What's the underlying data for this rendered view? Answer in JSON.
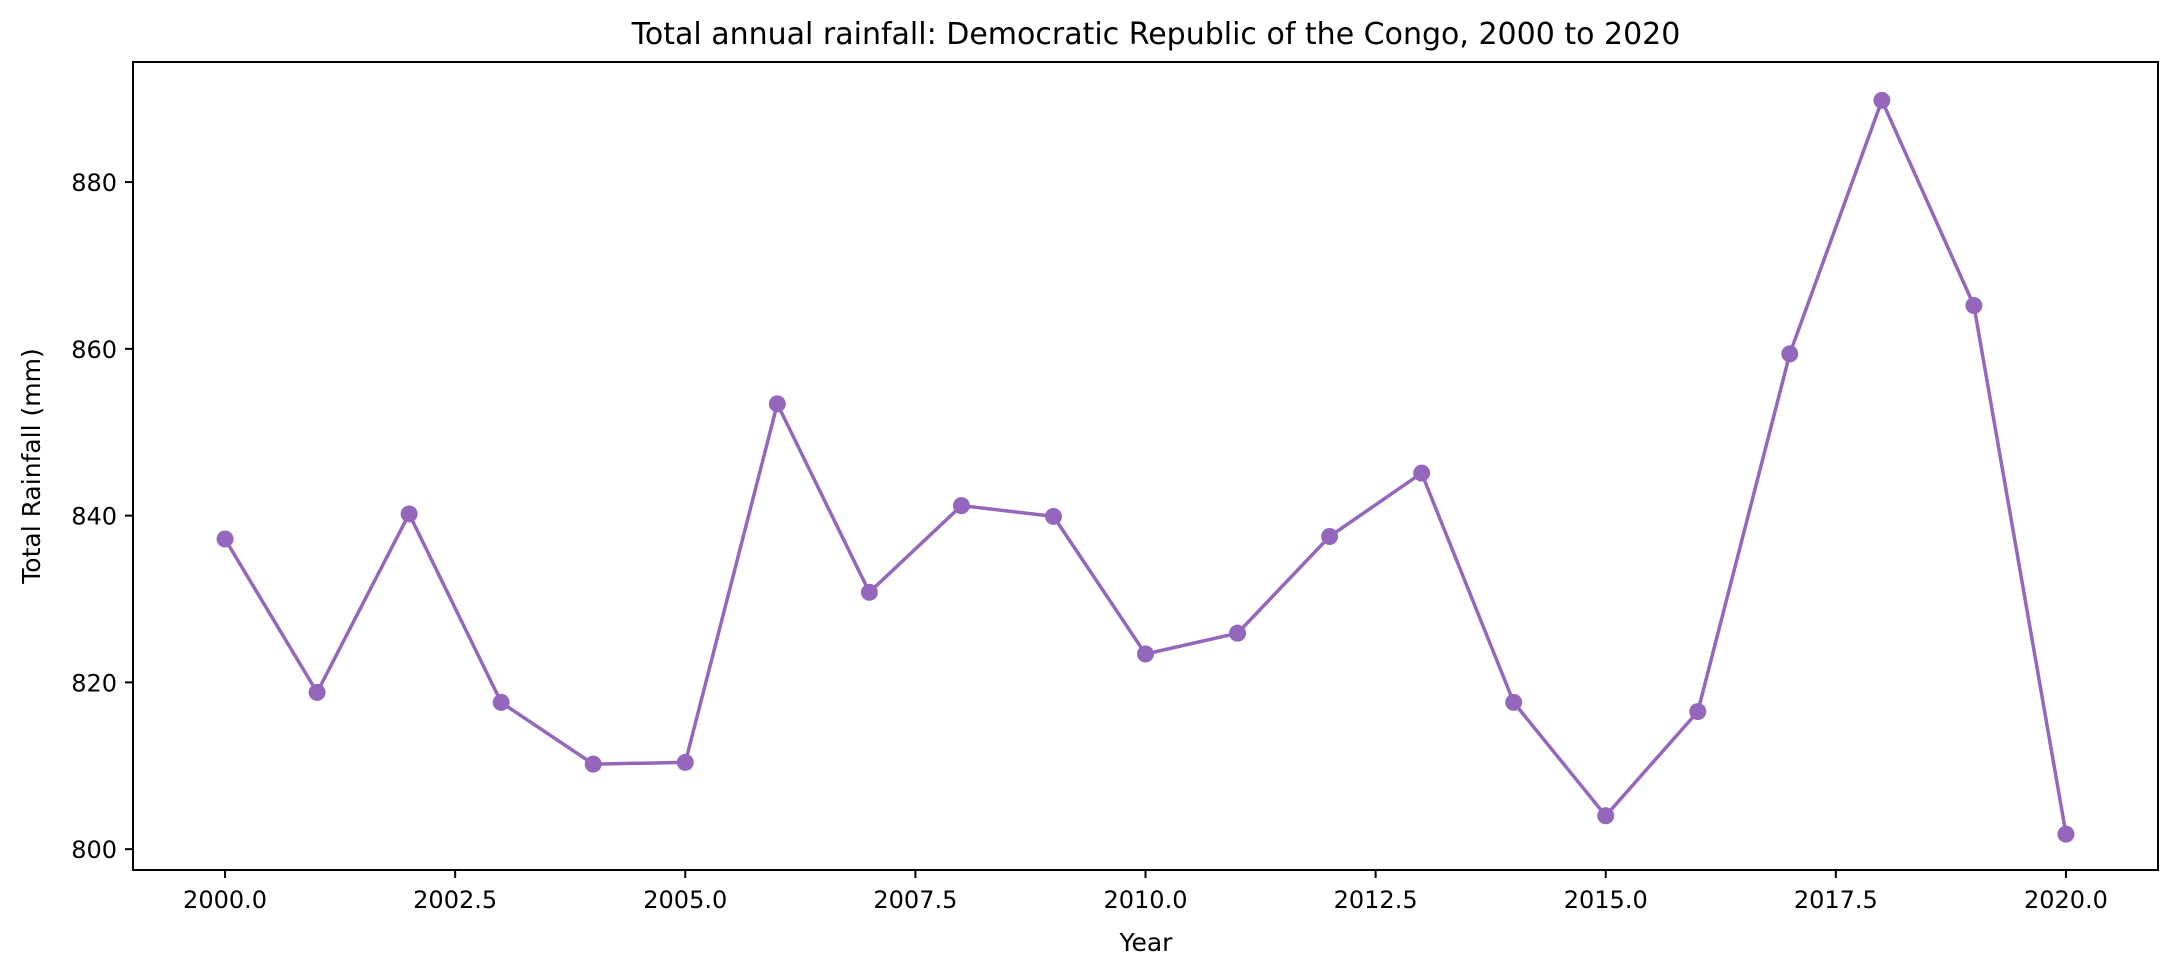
{
  "chart_data": {
    "type": "line",
    "title": "Total annual rainfall: Democratic Republic of the Congo, 2000 to 2020",
    "xlabel": "Year",
    "ylabel": "Total Rainfall (mm)",
    "xlim": [
      1999.0,
      2021.0
    ],
    "ylim": [
      797.5,
      894.4
    ],
    "xticks": [
      2000.0,
      2002.5,
      2005.0,
      2007.5,
      2010.0,
      2012.5,
      2015.0,
      2017.5,
      2020.0
    ],
    "xtick_labels": [
      "2000.0",
      "2002.5",
      "2005.0",
      "2007.5",
      "2010.0",
      "2012.5",
      "2015.0",
      "2017.5",
      "2020.0"
    ],
    "yticks": [
      800,
      820,
      840,
      860,
      880
    ],
    "ytick_labels": [
      "800",
      "820",
      "840",
      "860",
      "880"
    ],
    "grid": false,
    "series": [
      {
        "color": "#9467bd",
        "marker": "circle",
        "x": [
          2000,
          2001,
          2002,
          2003,
          2004,
          2005,
          2006,
          2007,
          2008,
          2009,
          2010,
          2011,
          2012,
          2013,
          2014,
          2015,
          2016,
          2017,
          2018,
          2019,
          2020
        ],
        "y": [
          837.2,
          818.8,
          840.2,
          817.6,
          810.2,
          810.4,
          853.4,
          830.8,
          841.2,
          839.9,
          823.4,
          825.9,
          837.5,
          845.1,
          817.6,
          804.0,
          816.5,
          859.4,
          889.8,
          865.2,
          801.8
        ]
      }
    ]
  }
}
